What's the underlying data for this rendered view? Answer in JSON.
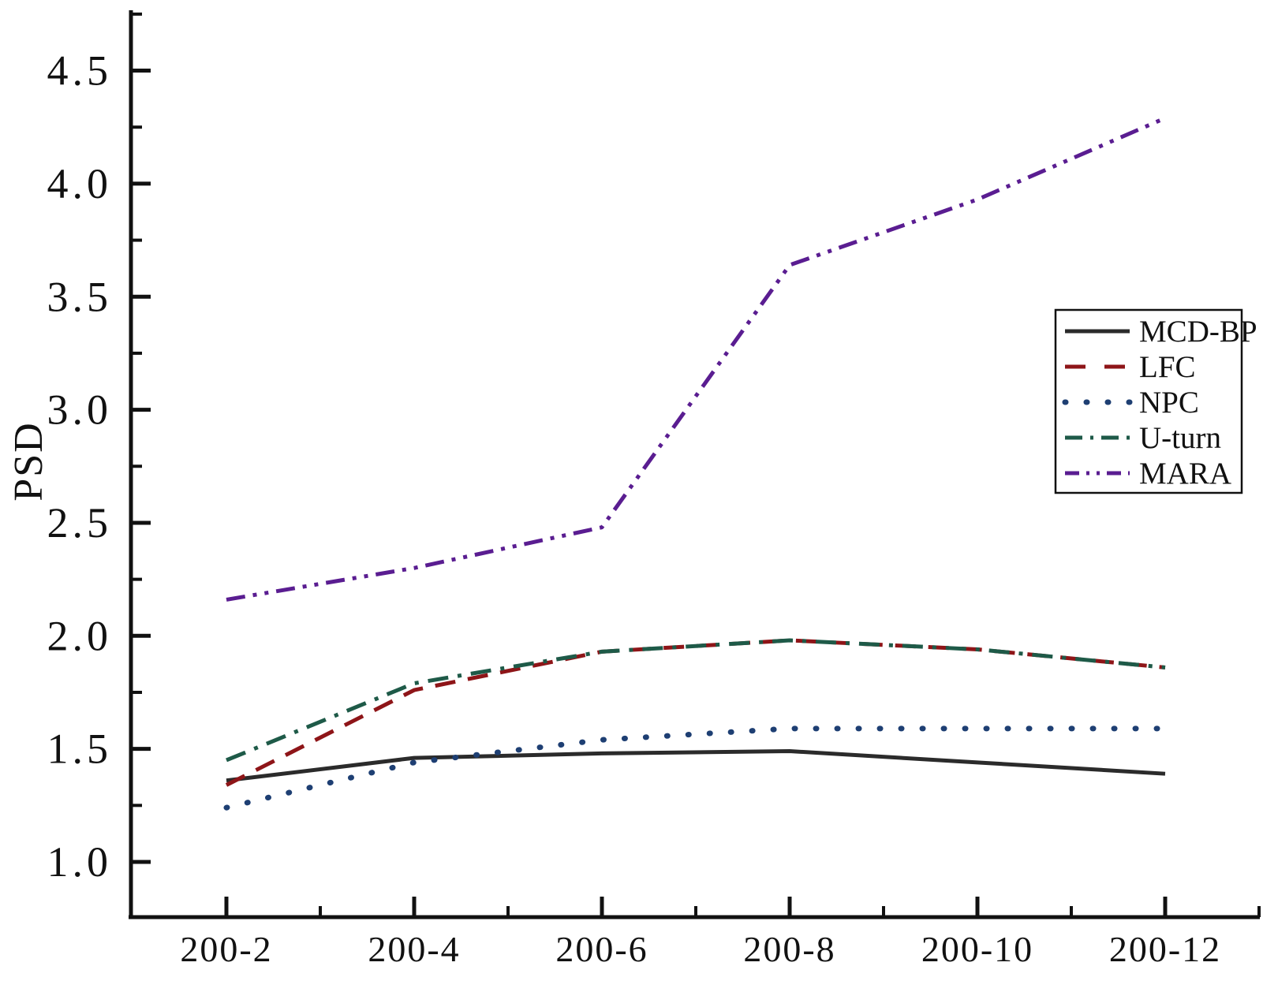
{
  "figure": {
    "background": "#ffffff"
  },
  "chart_data": {
    "type": "line",
    "title": "",
    "xlabel": "",
    "ylabel": "PSD",
    "grid": false,
    "legend_position": "right-middle",
    "categories": [
      "200-2",
      "200-4",
      "200-6",
      "200-8",
      "200-10",
      "200-12"
    ],
    "series": [
      {
        "name": "MCD-BP",
        "style": "solid",
        "color": "#2b2b2b",
        "values": [
          1.36,
          1.46,
          1.48,
          1.49,
          1.44,
          1.39
        ]
      },
      {
        "name": "LFC",
        "style": "dashed",
        "color": "#8e1518",
        "values": [
          1.34,
          1.76,
          1.93,
          1.98,
          1.94,
          1.86
        ]
      },
      {
        "name": "NPC",
        "style": "dotted",
        "color": "#1e3f73",
        "values": [
          1.24,
          1.44,
          1.54,
          1.59,
          1.59,
          1.59
        ]
      },
      {
        "name": "U-turn",
        "style": "dash-dot",
        "color": "#1e5a48",
        "values": [
          1.45,
          1.79,
          1.93,
          1.98,
          1.94,
          1.86
        ]
      },
      {
        "name": "MARA",
        "style": "dash-dot-dot",
        "color": "#5a1d91",
        "values": [
          2.16,
          2.3,
          2.48,
          3.64,
          3.93,
          4.29
        ]
      }
    ],
    "y_ticks": [
      1.0,
      1.5,
      2.0,
      2.5,
      3.0,
      3.5,
      4.0,
      4.5
    ],
    "y_tick_labels": [
      "1.0",
      "1.5",
      "2.0",
      "2.5",
      "3.0",
      "3.5",
      "4.0",
      "4.5"
    ],
    "ylim": [
      0.75,
      4.76
    ]
  }
}
